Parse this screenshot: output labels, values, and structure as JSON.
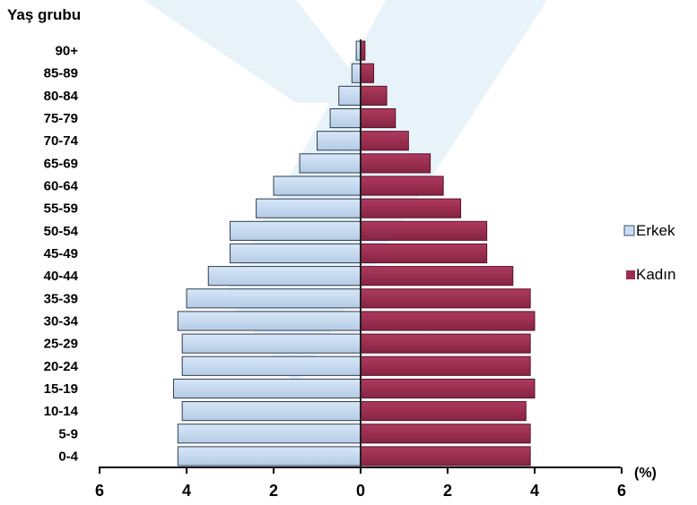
{
  "chart_data": {
    "type": "bar",
    "orientation": "horizontal-population-pyramid",
    "ylabel": "Yaş grubu",
    "xunit": "(%)",
    "categories": [
      "0-4",
      "5-9",
      "10-14",
      "15-19",
      "20-24",
      "25-29",
      "30-34",
      "35-39",
      "40-44",
      "45-49",
      "50-54",
      "55-59",
      "60-64",
      "65-69",
      "70-74",
      "75-79",
      "80-84",
      "85-89",
      "90+"
    ],
    "series": [
      {
        "name": "Erkek",
        "color": "#c8ddf3",
        "values": [
          4.2,
          4.2,
          4.1,
          4.3,
          4.1,
          4.1,
          4.2,
          4.0,
          3.5,
          3.0,
          3.0,
          2.4,
          2.0,
          1.4,
          1.0,
          0.7,
          0.5,
          0.2,
          0.1
        ]
      },
      {
        "name": "Kadın",
        "color": "#9c2d50",
        "values": [
          3.9,
          3.9,
          3.8,
          4.0,
          3.9,
          3.9,
          4.0,
          3.9,
          3.5,
          2.9,
          2.9,
          2.3,
          1.9,
          1.6,
          1.1,
          0.8,
          0.6,
          0.3,
          0.1
        ]
      }
    ],
    "xlim": [
      -6,
      6
    ],
    "xticks": [
      "6",
      "4",
      "2",
      "0",
      "2",
      "4",
      "6"
    ],
    "legend_position": "right",
    "grid": false
  }
}
